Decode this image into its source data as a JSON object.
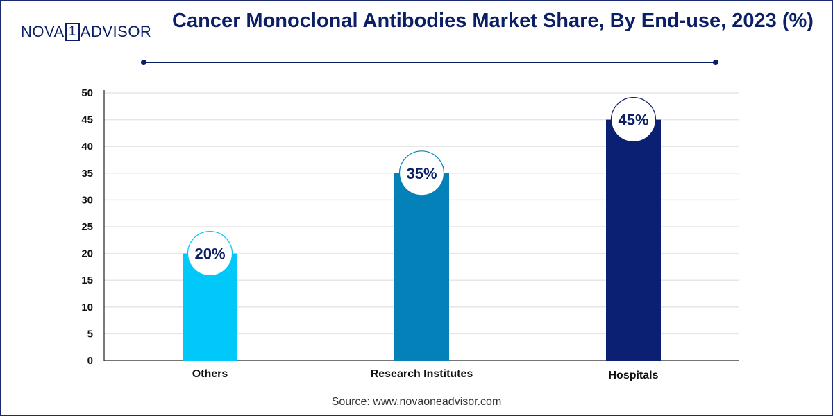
{
  "brand": {
    "prefix": "NOVA",
    "box": "1",
    "suffix": "ADVISOR"
  },
  "title": "Cancer Monoclonal Antibodies Market Share, By End-use, 2023 (%)",
  "source": "Source: www.novaoneadvisor.com",
  "colors": {
    "title": "#0b1f66",
    "bars": [
      "#00c8f8",
      "#0381b8",
      "#0b1f73"
    ]
  },
  "chart_data": {
    "type": "bar",
    "title": "Cancer Monoclonal Antibodies Market Share, By End-use, 2023 (%)",
    "xlabel": "",
    "ylabel": "",
    "categories": [
      "Others",
      "Research Institutes",
      "Hospitals"
    ],
    "values": [
      20,
      35,
      45
    ],
    "data_labels": [
      "20%",
      "35%",
      "45%"
    ],
    "ylim": [
      0,
      50
    ],
    "yticks": [
      0,
      5,
      10,
      15,
      20,
      25,
      30,
      35,
      40,
      45,
      50
    ],
    "grid": true,
    "legend": "none"
  }
}
